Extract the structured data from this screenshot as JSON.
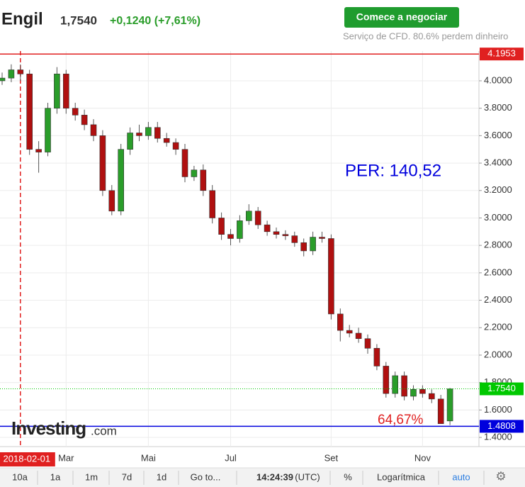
{
  "header": {
    "name": "Engil",
    "price": "1,7540",
    "change": "+0,1240 (+7,61%)",
    "button": "Comece a negociar",
    "disclaimer": "Serviço de CFD. 80.6% perdem dinheiro"
  },
  "chart_data": {
    "type": "candlestick",
    "categories": [
      null,
      null,
      "2018-02-01",
      null,
      null,
      null,
      null,
      "Mar",
      null,
      null,
      null,
      null,
      null,
      null,
      null,
      null,
      "Mai",
      null,
      null,
      null,
      null,
      null,
      null,
      null,
      null,
      "Jul",
      null,
      null,
      null,
      null,
      null,
      null,
      null,
      null,
      null,
      null,
      "Set",
      null,
      null,
      null,
      null,
      null,
      null,
      null,
      null,
      null,
      "Nov",
      null,
      null,
      null
    ],
    "crosshair_index": 2,
    "open": [
      4.0,
      4.02,
      4.08,
      4.05,
      3.5,
      3.48,
      3.8,
      4.05,
      3.8,
      3.75,
      3.68,
      3.6,
      3.2,
      3.05,
      3.5,
      3.62,
      3.6,
      3.66,
      3.58,
      3.55,
      3.5,
      3.3,
      3.35,
      3.2,
      3.0,
      2.88,
      2.85,
      2.98,
      3.05,
      2.95,
      2.9,
      2.88,
      2.87,
      2.82,
      2.76,
      2.86,
      2.85,
      2.3,
      2.18,
      2.16,
      2.12,
      2.05,
      1.92,
      1.72,
      1.85,
      1.7,
      1.75,
      1.72,
      1.68,
      1.52
    ],
    "high": [
      4.06,
      4.12,
      4.12,
      4.08,
      3.56,
      3.84,
      4.1,
      4.08,
      3.84,
      3.79,
      3.72,
      3.64,
      3.24,
      3.54,
      3.66,
      3.68,
      3.7,
      3.7,
      3.62,
      3.58,
      3.54,
      3.38,
      3.39,
      3.24,
      3.04,
      2.92,
      3.02,
      3.1,
      3.08,
      2.98,
      2.93,
      2.91,
      2.9,
      2.85,
      2.9,
      2.9,
      2.88,
      2.34,
      2.22,
      2.2,
      2.15,
      2.08,
      1.95,
      1.88,
      1.88,
      1.78,
      1.78,
      1.75,
      1.71,
      1.76
    ],
    "low": [
      3.97,
      3.99,
      4.0,
      3.46,
      3.33,
      3.45,
      3.76,
      3.76,
      3.71,
      3.64,
      3.56,
      3.16,
      3.02,
      3.02,
      3.46,
      3.56,
      3.57,
      3.55,
      3.52,
      3.46,
      3.26,
      3.27,
      3.16,
      2.96,
      2.84,
      2.8,
      2.82,
      2.95,
      2.92,
      2.87,
      2.85,
      2.84,
      2.79,
      2.72,
      2.73,
      2.82,
      2.26,
      2.1,
      2.13,
      2.09,
      2.01,
      1.89,
      1.69,
      1.69,
      1.67,
      1.67,
      1.69,
      1.65,
      1.5,
      1.49
    ],
    "close": [
      4.02,
      4.08,
      4.05,
      3.5,
      3.48,
      3.8,
      4.05,
      3.8,
      3.75,
      3.68,
      3.6,
      3.2,
      3.05,
      3.5,
      3.62,
      3.6,
      3.66,
      3.58,
      3.55,
      3.5,
      3.3,
      3.35,
      3.2,
      3.0,
      2.88,
      2.85,
      2.98,
      3.05,
      2.95,
      2.9,
      2.88,
      2.87,
      2.82,
      2.76,
      2.86,
      2.85,
      2.3,
      2.18,
      2.16,
      2.12,
      2.05,
      1.92,
      1.72,
      1.85,
      1.7,
      1.75,
      1.72,
      1.68,
      1.5,
      1.754
    ],
    "up_color": "#2a9d2a",
    "down_color": "#b01010",
    "grid": true,
    "ylim": [
      1.333,
      4.217
    ],
    "yticks": [
      {
        "value": 1.4,
        "label": "1.4000"
      },
      {
        "value": 1.6,
        "label": "1.6000"
      },
      {
        "value": 1.8,
        "label": "1.8000"
      },
      {
        "value": 2.0,
        "label": "2.0000"
      },
      {
        "value": 2.2,
        "label": "2.2000"
      },
      {
        "value": 2.4,
        "label": "2.4000"
      },
      {
        "value": 2.6,
        "label": "2.6000"
      },
      {
        "value": 2.8,
        "label": "2.8000"
      },
      {
        "value": 3.0,
        "label": "3.0000"
      },
      {
        "value": 3.2,
        "label": "3.2000"
      },
      {
        "value": 3.4,
        "label": "3.4000"
      },
      {
        "value": 3.6,
        "label": "3.6000"
      },
      {
        "value": 3.8,
        "label": "3.8000"
      },
      {
        "value": 4.0,
        "label": "4.0000"
      }
    ],
    "price_lines": [
      {
        "value": 4.1953,
        "color": "#e02020",
        "style": "solid"
      },
      {
        "value": 1.754,
        "label": "1.7540",
        "color": "#00c800",
        "style": "dotted"
      },
      {
        "value": 1.4808,
        "color": "#0000dd",
        "style": "solid"
      }
    ],
    "annotations": [
      {
        "text": "PER: 140,52",
        "color": "#0000dd"
      },
      {
        "text": "64,67%",
        "color": "#e02020"
      }
    ],
    "watermark": [
      "Investing",
      ".com"
    ]
  },
  "toolbar": [
    "10a",
    "1a",
    "1m",
    "7d",
    "1d",
    "Go to...",
    "14:24:39",
    "(UTC)",
    "%",
    "Logarítmica",
    "auto"
  ]
}
